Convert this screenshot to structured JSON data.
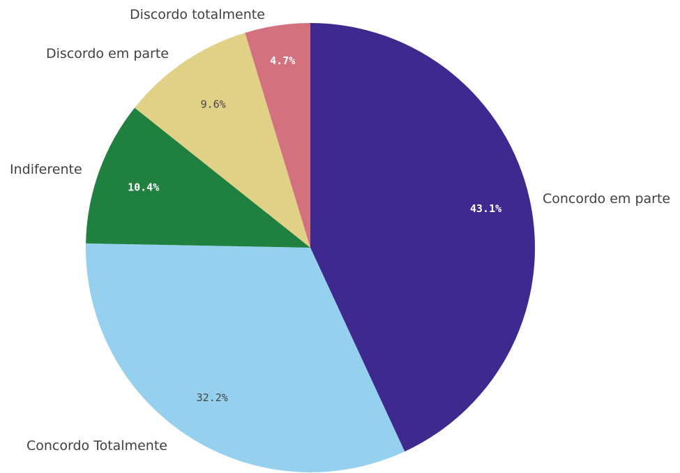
{
  "chart_data": {
    "type": "pie",
    "title": "",
    "start": "12 o'clock, clockwise",
    "slices": [
      {
        "label": "Concordo em parte",
        "value": 43.1,
        "value_label": "43.1%",
        "color": "#3e2a8f",
        "label_dark": true
      },
      {
        "label": "Concordo Totalmente",
        "value": 32.2,
        "value_label": "32.2%",
        "color": "#95d0ef",
        "label_dark": false
      },
      {
        "label": "Indiferente",
        "value": 10.4,
        "value_label": "10.4%",
        "color": "#1f8040",
        "label_dark": true
      },
      {
        "label": "Discordo em parte",
        "value": 9.6,
        "value_label": "9.6%",
        "color": "#e0d187",
        "label_dark": false
      },
      {
        "label": "Discordo totalmente",
        "value": 4.7,
        "value_label": "4.7%",
        "color": "#d4717f",
        "label_dark": true
      }
    ]
  }
}
